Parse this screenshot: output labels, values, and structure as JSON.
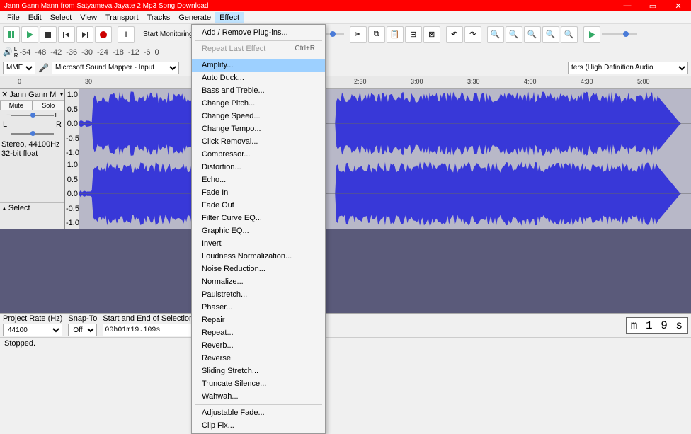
{
  "titlebar": {
    "title": "Jann Gann Mann from Satyameva Jayate 2 Mp3 Song Download",
    "bg": "#ff0000"
  },
  "menus": [
    "File",
    "Edit",
    "Select",
    "View",
    "Transport",
    "Tracks",
    "Generate",
    "Effect"
  ],
  "active_menu": "Effect",
  "toolbar": {
    "monitor_label": "Start Monitoring",
    "meter_ticks": [
      "-18",
      "-12",
      "-6",
      "0"
    ],
    "meter_ticks2": [
      "-54",
      "-48",
      "-42",
      "-36",
      "-30",
      "-24",
      "-18",
      "-12",
      "-6",
      "0"
    ]
  },
  "devices": {
    "host": "MME",
    "input": "Microsoft Sound Mapper - Input",
    "output": "ters (High Definition Audio"
  },
  "timeline": {
    "ticks": [
      {
        "pos": 25,
        "label": "0"
      },
      {
        "pos": 120,
        "label": "30"
      },
      {
        "pos": 500,
        "label": "2:30"
      },
      {
        "pos": 580,
        "label": "3:00"
      },
      {
        "pos": 660,
        "label": "3:30"
      },
      {
        "pos": 740,
        "label": "4:00"
      },
      {
        "pos": 820,
        "label": "4:30"
      },
      {
        "pos": 900,
        "label": "5:00"
      }
    ]
  },
  "track": {
    "name": "Jann Gann M",
    "mute": "Mute",
    "solo": "Solo",
    "pan_l": "L",
    "pan_r": "R",
    "info1": "Stereo, 44100Hz",
    "info2": "32-bit float",
    "select": "Select",
    "scale": [
      "1.0",
      "0.5",
      "0.0",
      "-0.5",
      "-1.0"
    ],
    "wave_color": "#3838d8",
    "wave_bg": "#b8b8c8"
  },
  "effect_menu": {
    "top": [
      {
        "label": "Add / Remove Plug-ins..."
      }
    ],
    "repeat": {
      "label": "Repeat Last Effect",
      "shortcut": "Ctrl+R",
      "disabled": true
    },
    "items": [
      {
        "label": "Amplify...",
        "highlight": true
      },
      {
        "label": "Auto Duck..."
      },
      {
        "label": "Bass and Treble..."
      },
      {
        "label": "Change Pitch..."
      },
      {
        "label": "Change Speed..."
      },
      {
        "label": "Change Tempo..."
      },
      {
        "label": "Click Removal..."
      },
      {
        "label": "Compressor..."
      },
      {
        "label": "Distortion..."
      },
      {
        "label": "Echo..."
      },
      {
        "label": "Fade In"
      },
      {
        "label": "Fade Out"
      },
      {
        "label": "Filter Curve EQ..."
      },
      {
        "label": "Graphic EQ..."
      },
      {
        "label": "Invert"
      },
      {
        "label": "Loudness Normalization..."
      },
      {
        "label": "Noise Reduction..."
      },
      {
        "label": "Normalize..."
      },
      {
        "label": "Paulstretch..."
      },
      {
        "label": "Phaser..."
      },
      {
        "label": "Repair"
      },
      {
        "label": "Repeat..."
      },
      {
        "label": "Reverb..."
      },
      {
        "label": "Reverse"
      },
      {
        "label": "Sliding Stretch..."
      },
      {
        "label": "Truncate Silence..."
      },
      {
        "label": "Wahwah..."
      }
    ],
    "bottom": [
      {
        "label": "Adjustable Fade..."
      },
      {
        "label": "Clip Fix..."
      }
    ]
  },
  "bottom": {
    "rate_label": "Project Rate (Hz)",
    "rate": "44100",
    "snap_label": "Snap-To",
    "snap": "Off",
    "sel_label": "Start and End of Selection",
    "sel_val": "00h01m19.109s",
    "time_display": "m 1 9 s"
  },
  "status": "Stopped."
}
